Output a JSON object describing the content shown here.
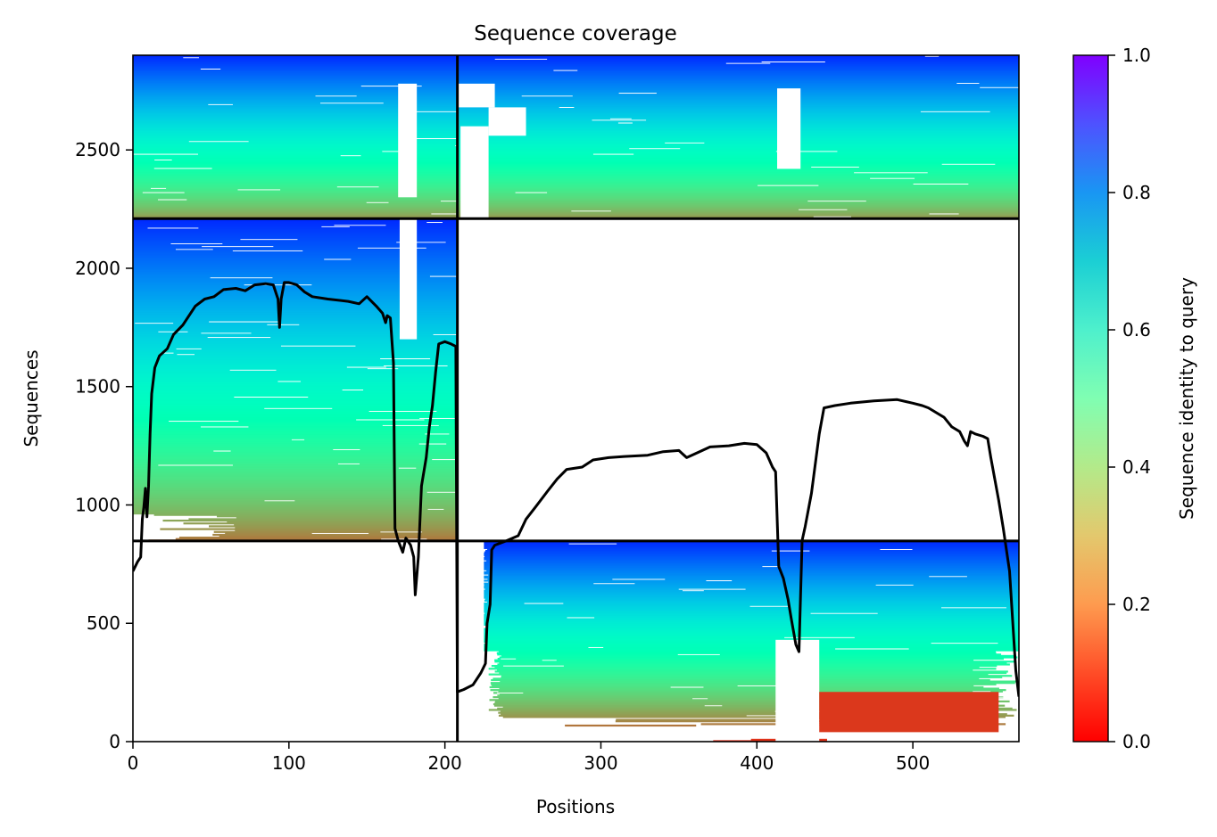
{
  "chart_data": {
    "type": "heatmap",
    "title": "Sequence coverage",
    "xlabel": "Positions",
    "ylabel": "Sequences",
    "xlim": [
      0,
      568
    ],
    "ylim": [
      0,
      2900
    ],
    "xticks": [
      0,
      100,
      200,
      300,
      400,
      500
    ],
    "yticks": [
      0,
      500,
      1000,
      1500,
      2000,
      2500
    ],
    "colorbar": {
      "label": "Sequence identity to query",
      "range": [
        0,
        1
      ],
      "ticks": [
        "0.0",
        "0.2",
        "0.4",
        "0.6",
        "0.8",
        "1.0"
      ],
      "colormap": "rainbow_r"
    },
    "block_boundaries": {
      "x": [
        208
      ],
      "y": [
        848,
        2210
      ]
    },
    "blocks": [
      {
        "x_range": [
          0,
          208
        ],
        "y_range": [
          848,
          2210
        ],
        "identity_bottom": 0.15,
        "identity_top": 0.95,
        "fill": "dense"
      },
      {
        "x_range": [
          0,
          208
        ],
        "y_range": [
          2210,
          2900
        ],
        "identity_bottom": 0.2,
        "identity_top": 0.95,
        "fill": "dense"
      },
      {
        "x_range": [
          208,
          568
        ],
        "y_range": [
          2210,
          2900
        ],
        "identity_bottom": 0.2,
        "identity_top": 0.95,
        "fill": "dense"
      },
      {
        "x_range": [
          208,
          568
        ],
        "y_range": [
          0,
          848
        ],
        "identity_bottom": 0.05,
        "identity_top": 0.95,
        "fill": "partial"
      }
    ],
    "coverage_line": {
      "color": "#000000",
      "points": [
        [
          0,
          720
        ],
        [
          3,
          760
        ],
        [
          5,
          780
        ],
        [
          6,
          940
        ],
        [
          7,
          990
        ],
        [
          8,
          1070
        ],
        [
          9,
          950
        ],
        [
          10,
          1080
        ],
        [
          11,
          1300
        ],
        [
          12,
          1470
        ],
        [
          14,
          1580
        ],
        [
          17,
          1630
        ],
        [
          22,
          1660
        ],
        [
          26,
          1720
        ],
        [
          32,
          1760
        ],
        [
          40,
          1840
        ],
        [
          46,
          1870
        ],
        [
          52,
          1880
        ],
        [
          58,
          1910
        ],
        [
          66,
          1915
        ],
        [
          72,
          1905
        ],
        [
          78,
          1930
        ],
        [
          85,
          1935
        ],
        [
          90,
          1930
        ],
        [
          93,
          1870
        ],
        [
          94,
          1750
        ],
        [
          95,
          1870
        ],
        [
          97,
          1940
        ],
        [
          100,
          1940
        ],
        [
          105,
          1930
        ],
        [
          110,
          1900
        ],
        [
          115,
          1880
        ],
        [
          125,
          1870
        ],
        [
          138,
          1860
        ],
        [
          145,
          1850
        ],
        [
          150,
          1880
        ],
        [
          156,
          1840
        ],
        [
          160,
          1810
        ],
        [
          162,
          1770
        ],
        [
          163,
          1800
        ],
        [
          165,
          1790
        ],
        [
          167,
          1600
        ],
        [
          168,
          900
        ],
        [
          170,
          850
        ],
        [
          173,
          800
        ],
        [
          175,
          860
        ],
        [
          178,
          830
        ],
        [
          180,
          780
        ],
        [
          181,
          620
        ],
        [
          183,
          780
        ],
        [
          185,
          1080
        ],
        [
          188,
          1200
        ],
        [
          190,
          1330
        ],
        [
          192,
          1420
        ],
        [
          194,
          1560
        ],
        [
          196,
          1680
        ],
        [
          200,
          1690
        ],
        [
          204,
          1680
        ],
        [
          207,
          1670
        ],
        [
          208,
          210
        ],
        [
          212,
          220
        ],
        [
          218,
          240
        ],
        [
          223,
          290
        ],
        [
          226,
          330
        ],
        [
          227,
          500
        ],
        [
          229,
          580
        ],
        [
          230,
          810
        ],
        [
          232,
          830
        ],
        [
          240,
          850
        ],
        [
          247,
          870
        ],
        [
          252,
          940
        ],
        [
          258,
          990
        ],
        [
          266,
          1060
        ],
        [
          272,
          1110
        ],
        [
          278,
          1150
        ],
        [
          288,
          1160
        ],
        [
          295,
          1190
        ],
        [
          305,
          1200
        ],
        [
          315,
          1205
        ],
        [
          330,
          1210
        ],
        [
          340,
          1225
        ],
        [
          350,
          1230
        ],
        [
          355,
          1200
        ],
        [
          360,
          1215
        ],
        [
          370,
          1245
        ],
        [
          382,
          1250
        ],
        [
          392,
          1260
        ],
        [
          400,
          1255
        ],
        [
          406,
          1220
        ],
        [
          410,
          1160
        ],
        [
          412,
          1140
        ],
        [
          414,
          740
        ],
        [
          417,
          690
        ],
        [
          420,
          600
        ],
        [
          422,
          520
        ],
        [
          425,
          410
        ],
        [
          427,
          380
        ],
        [
          429,
          850
        ],
        [
          431,
          910
        ],
        [
          435,
          1050
        ],
        [
          438,
          1200
        ],
        [
          440,
          1300
        ],
        [
          443,
          1410
        ],
        [
          450,
          1420
        ],
        [
          460,
          1430
        ],
        [
          475,
          1440
        ],
        [
          490,
          1445
        ],
        [
          500,
          1430
        ],
        [
          506,
          1420
        ],
        [
          510,
          1410
        ],
        [
          515,
          1390
        ],
        [
          520,
          1370
        ],
        [
          525,
          1330
        ],
        [
          530,
          1310
        ],
        [
          533,
          1270
        ],
        [
          535,
          1250
        ],
        [
          537,
          1310
        ],
        [
          540,
          1300
        ],
        [
          545,
          1290
        ],
        [
          548,
          1280
        ],
        [
          550,
          1200
        ],
        [
          555,
          1020
        ],
        [
          558,
          900
        ],
        [
          562,
          720
        ],
        [
          566,
          300
        ],
        [
          568,
          190
        ]
      ]
    }
  }
}
